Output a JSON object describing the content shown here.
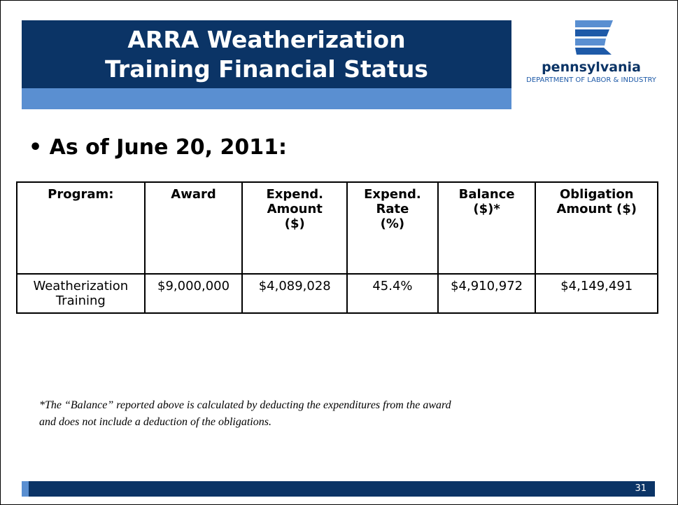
{
  "header": {
    "title_lines": [
      "ARRA Weatherization",
      "Training Financial Status"
    ],
    "logo_name": "pennsylvania",
    "logo_department": "DEPARTMENT OF LABOR & INDUSTRY"
  },
  "bullet": "As of June 20, 2011:",
  "table": {
    "header": [
      [
        "Program:"
      ],
      [
        "Award"
      ],
      [
        "Expend.",
        "Amount",
        "($)"
      ],
      [
        "Expend.",
        "Rate",
        "(%)"
      ],
      [
        "Balance",
        "($)*"
      ],
      [
        "Obligation",
        "Amount ($)"
      ]
    ],
    "rows": [
      [
        "Weatherization Training",
        "$9,000,000",
        "$4,089,028",
        "45.4%",
        "$4,910,972",
        "$4,149,491"
      ]
    ]
  },
  "footnote_lines": [
    "*The “Balance” reported above is calculated by deducting the expenditures from the award",
    "and does not include a deduction of the obligations."
  ],
  "page_number": "31"
}
